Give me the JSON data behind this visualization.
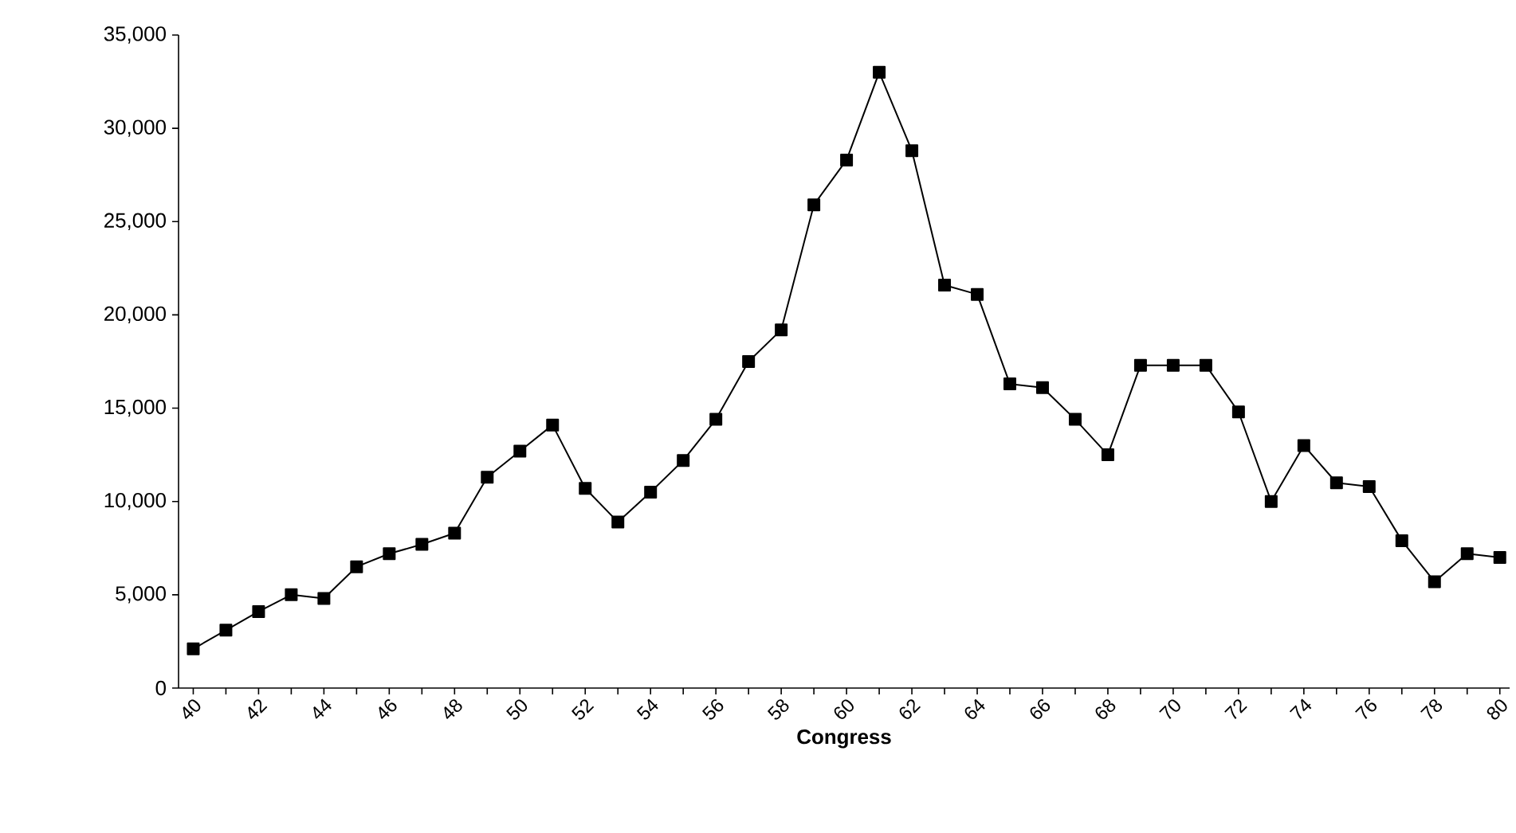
{
  "chart_data": {
    "type": "line",
    "xlabel": "Congress",
    "categories": [
      "40",
      null,
      "42",
      null,
      "44",
      null,
      "46",
      null,
      "48",
      null,
      "50",
      null,
      "52",
      null,
      "54",
      null,
      "56",
      null,
      "58",
      null,
      "60",
      null,
      "62",
      null,
      "64",
      null,
      "66",
      null,
      "68",
      null,
      "70",
      null,
      "72",
      null,
      "74",
      null,
      "76",
      null,
      "78",
      null,
      "80"
    ],
    "values": [
      2100,
      3100,
      4100,
      5000,
      4800,
      6500,
      7200,
      7700,
      8300,
      11300,
      12700,
      14100,
      10700,
      8900,
      10500,
      12200,
      14400,
      17500,
      19200,
      25900,
      28300,
      33000,
      28800,
      21600,
      21100,
      16300,
      16100,
      14400,
      12500,
      17300,
      17300,
      17300,
      14800,
      10000,
      13000,
      11000,
      10800,
      7900,
      5700,
      7200,
      7000
    ],
    "color": "#000000",
    "marker": "square",
    "line_style": "solid",
    "ylim": [
      0,
      35000
    ],
    "yticks": [
      0,
      {
        "value": 5000,
        "label": "5,000"
      },
      {
        "value": 10000,
        "label": "10,000"
      },
      {
        "value": 15000,
        "label": "15,000"
      },
      {
        "value": 20000,
        "label": "20,000"
      },
      {
        "value": 25000,
        "label": "25,000"
      },
      {
        "value": 30000,
        "label": "30,000"
      },
      {
        "value": 35000,
        "label": "35,000"
      }
    ]
  }
}
